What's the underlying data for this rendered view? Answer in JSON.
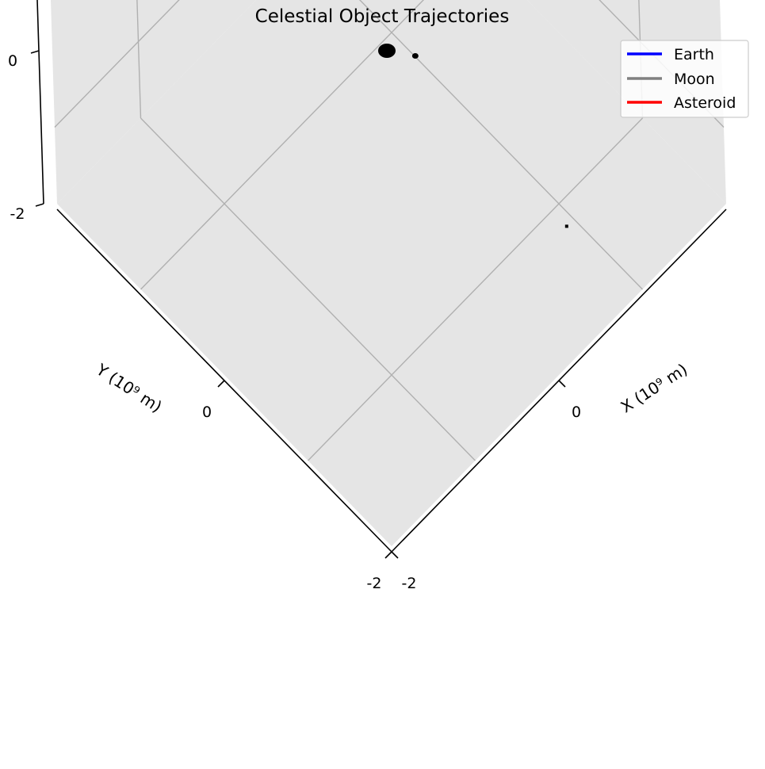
{
  "chart_data": {
    "type": "scatter",
    "projection": "3d",
    "title": "Celestial Object Trajectories",
    "xlabel": "X (10⁹ m)",
    "ylabel": "Y (10⁹ m)",
    "zlabel": "",
    "xlim": [
      -2,
      2
    ],
    "ylim": [
      -2,
      2
    ],
    "zlim": [
      -2,
      2
    ],
    "x_ticks": [
      {
        "value": -2,
        "label": "-2"
      },
      {
        "value": 0,
        "label": "0"
      }
    ],
    "y_ticks": [
      {
        "value": -2,
        "label": "-2"
      },
      {
        "value": 0,
        "label": "0"
      }
    ],
    "z_ticks": [
      {
        "value": -2,
        "label": "-2"
      },
      {
        "value": 0,
        "label": "0"
      }
    ],
    "grid": true,
    "pane_color": "#e5e5e5",
    "grid_color": "#b0b0b0",
    "legend_position": "top-right",
    "series": [
      {
        "name": "Earth",
        "color": "#0000ff",
        "points": []
      },
      {
        "name": "Moon",
        "color": "#808080",
        "points": []
      },
      {
        "name": "Asteroid",
        "color": "#ff0000",
        "points": []
      }
    ],
    "markers": [
      {
        "x": 0,
        "y": 0,
        "z": 0,
        "size": "large",
        "color": "#000000"
      },
      {
        "x": 0.14,
        "y": -0.2,
        "z": 0,
        "size": "small",
        "color": "#000000"
      },
      {
        "x": 0.05,
        "y": -2.1,
        "z": 0,
        "size": "tiny",
        "color": "#000000"
      }
    ]
  }
}
